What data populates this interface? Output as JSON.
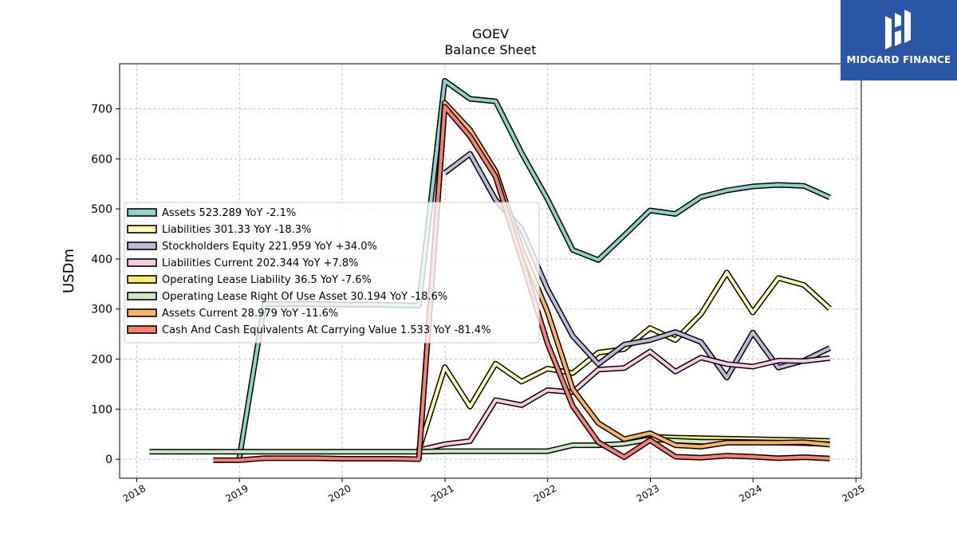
{
  "title": "GOEV",
  "subtitle": "Balance  Sheet",
  "brand": {
    "name": "MIDGARD FINANCE",
    "color": "#2b56a8",
    "icon": "midgard-logo-icon"
  },
  "chart_data": {
    "type": "line",
    "title": "GOEV\nBalance  Sheet",
    "xlabel": "",
    "ylabel": "USDm",
    "xlim": [
      "2017-11-01",
      "2025-01-20"
    ],
    "ylim": [
      -38,
      790
    ],
    "grid": true,
    "legend_position": "center-left",
    "x_ticks": [
      "2018",
      "2019",
      "2020",
      "2021",
      "2022",
      "2023",
      "2024",
      "2025"
    ],
    "y_ticks": [
      0,
      100,
      200,
      300,
      400,
      500,
      600,
      700
    ],
    "series": [
      {
        "name": "Assets  523.289 YoY -2.1%",
        "color": "#8dd3c7",
        "points": [
          [
            "2018-12-31",
            0
          ],
          [
            "2019-03-31",
            310
          ],
          [
            "2019-06-30",
            310
          ],
          [
            "2019-09-30",
            310
          ],
          [
            "2019-12-31",
            309
          ],
          [
            "2020-03-31",
            309
          ],
          [
            "2020-06-30",
            308
          ],
          [
            "2020-09-30",
            307
          ],
          [
            "2020-12-31",
            756
          ],
          [
            "2021-03-31",
            720
          ],
          [
            "2021-06-30",
            715
          ],
          [
            "2021-09-30",
            612
          ],
          [
            "2021-12-31",
            520
          ],
          [
            "2022-03-31",
            418
          ],
          [
            "2022-06-30",
            398
          ],
          [
            "2022-09-30",
            447
          ],
          [
            "2022-12-31",
            497
          ],
          [
            "2023-03-31",
            490
          ],
          [
            "2023-06-30",
            524
          ],
          [
            "2023-09-30",
            537
          ],
          [
            "2023-12-31",
            545
          ],
          [
            "2024-03-31",
            548
          ],
          [
            "2024-06-30",
            546
          ],
          [
            "2024-09-30",
            523
          ]
        ]
      },
      {
        "name": "Liabilities  301.33 YoY -18.3%",
        "color": "#ffffb3",
        "points": [
          [
            "2020-09-30",
            18
          ],
          [
            "2020-12-31",
            184
          ],
          [
            "2021-03-31",
            105
          ],
          [
            "2021-06-30",
            191
          ],
          [
            "2021-09-30",
            155
          ],
          [
            "2021-12-31",
            181
          ],
          [
            "2022-03-31",
            172
          ],
          [
            "2022-06-30",
            213
          ],
          [
            "2022-09-30",
            220
          ],
          [
            "2022-12-31",
            262
          ],
          [
            "2023-03-31",
            238
          ],
          [
            "2023-06-30",
            290
          ],
          [
            "2023-09-30",
            373
          ],
          [
            "2023-12-31",
            293
          ],
          [
            "2024-03-31",
            362
          ],
          [
            "2024-06-30",
            348
          ],
          [
            "2024-09-30",
            301
          ]
        ]
      },
      {
        "name": "Stockholders Equity  221.959 YoY +34.0%",
        "color": "#bebada",
        "points": [
          [
            "2020-12-31",
            572
          ],
          [
            "2021-03-31",
            610
          ],
          [
            "2021-06-30",
            518
          ],
          [
            "2021-09-30",
            460
          ],
          [
            "2021-12-31",
            340
          ],
          [
            "2022-03-31",
            246
          ],
          [
            "2022-06-30",
            190
          ],
          [
            "2022-09-30",
            229
          ],
          [
            "2022-12-31",
            238
          ],
          [
            "2023-03-31",
            254
          ],
          [
            "2023-06-30",
            234
          ],
          [
            "2023-09-30",
            163
          ],
          [
            "2023-12-31",
            253
          ],
          [
            "2024-03-31",
            183
          ],
          [
            "2024-06-30",
            197
          ],
          [
            "2024-09-30",
            222
          ]
        ]
      },
      {
        "name": "Liabilities Current  202.344 YoY +7.8%",
        "color": "#fccde5",
        "points": [
          [
            "2020-09-30",
            18
          ],
          [
            "2020-12-31",
            30
          ],
          [
            "2021-03-31",
            36
          ],
          [
            "2021-06-30",
            118
          ],
          [
            "2021-09-30",
            108
          ],
          [
            "2021-12-31",
            138
          ],
          [
            "2022-03-31",
            134
          ],
          [
            "2022-06-30",
            179
          ],
          [
            "2022-09-30",
            182
          ],
          [
            "2022-12-31",
            215
          ],
          [
            "2023-03-31",
            175
          ],
          [
            "2023-06-30",
            203
          ],
          [
            "2023-09-30",
            190
          ],
          [
            "2023-12-31",
            185
          ],
          [
            "2024-03-31",
            197
          ],
          [
            "2024-06-30",
            196
          ],
          [
            "2024-09-30",
            202
          ]
        ]
      },
      {
        "name": "Operating Lease Liability  36.5 YoY -7.6%",
        "color": "#ffed6f",
        "points": [
          [
            "2022-12-31",
            45
          ],
          [
            "2023-03-31",
            43
          ],
          [
            "2023-06-30",
            42
          ],
          [
            "2023-09-30",
            41
          ],
          [
            "2023-12-31",
            40
          ],
          [
            "2024-03-31",
            39
          ],
          [
            "2024-06-30",
            38
          ],
          [
            "2024-09-30",
            36.5
          ]
        ]
      },
      {
        "name": "Operating Lease Right Of Use Asset  30.194 YoY -18.6%",
        "color": "#ccebc5",
        "points": [
          [
            "2018-02-15",
            15
          ],
          [
            "2020-09-30",
            15
          ],
          [
            "2020-12-31",
            16
          ],
          [
            "2021-03-31",
            16
          ],
          [
            "2021-06-30",
            16
          ],
          [
            "2021-09-30",
            16
          ],
          [
            "2021-12-31",
            16
          ],
          [
            "2022-03-31",
            28
          ],
          [
            "2022-06-30",
            28
          ],
          [
            "2022-09-30",
            31
          ],
          [
            "2022-12-31",
            40
          ],
          [
            "2023-03-31",
            37
          ],
          [
            "2023-06-30",
            35
          ],
          [
            "2023-09-30",
            35
          ],
          [
            "2023-12-31",
            34
          ],
          [
            "2024-03-31",
            33
          ],
          [
            "2024-06-30",
            32
          ],
          [
            "2024-09-30",
            30
          ]
        ]
      },
      {
        "name": "Assets Current  28.979 YoY -11.6%",
        "color": "#fdb462",
        "points": [
          [
            "2020-09-30",
            0
          ],
          [
            "2020-12-31",
            712
          ],
          [
            "2021-03-31",
            658
          ],
          [
            "2021-06-30",
            575
          ],
          [
            "2021-09-30",
            420
          ],
          [
            "2021-12-31",
            295
          ],
          [
            "2022-03-31",
            140
          ],
          [
            "2022-06-30",
            72
          ],
          [
            "2022-09-30",
            40
          ],
          [
            "2022-12-31",
            52
          ],
          [
            "2023-03-31",
            28
          ],
          [
            "2023-06-30",
            25
          ],
          [
            "2023-09-30",
            33
          ],
          [
            "2023-12-31",
            33
          ],
          [
            "2024-03-31",
            33
          ],
          [
            "2024-06-30",
            34
          ],
          [
            "2024-09-30",
            29
          ]
        ]
      },
      {
        "name": "Cash And Cash Equivalents At Carrying Value  1.533 YoY -81.4%",
        "color": "#fb8072",
        "points": [
          [
            "2018-09-30",
            -2
          ],
          [
            "2018-12-31",
            -2
          ],
          [
            "2019-03-31",
            2
          ],
          [
            "2019-06-30",
            2
          ],
          [
            "2019-09-30",
            2
          ],
          [
            "2019-12-31",
            1
          ],
          [
            "2020-03-31",
            1
          ],
          [
            "2020-06-30",
            1
          ],
          [
            "2020-09-30",
            0
          ],
          [
            "2020-12-31",
            704
          ],
          [
            "2021-03-31",
            645
          ],
          [
            "2021-06-30",
            564
          ],
          [
            "2021-09-30",
            400
          ],
          [
            "2021-12-31",
            232
          ],
          [
            "2022-03-31",
            106
          ],
          [
            "2022-06-30",
            34
          ],
          [
            "2022-09-30",
            4
          ],
          [
            "2022-12-31",
            38
          ],
          [
            "2023-03-31",
            5
          ],
          [
            "2023-06-30",
            3
          ],
          [
            "2023-09-30",
            7
          ],
          [
            "2023-12-31",
            5
          ],
          [
            "2024-03-31",
            2
          ],
          [
            "2024-06-30",
            4
          ],
          [
            "2024-09-30",
            1.5
          ]
        ]
      }
    ]
  }
}
